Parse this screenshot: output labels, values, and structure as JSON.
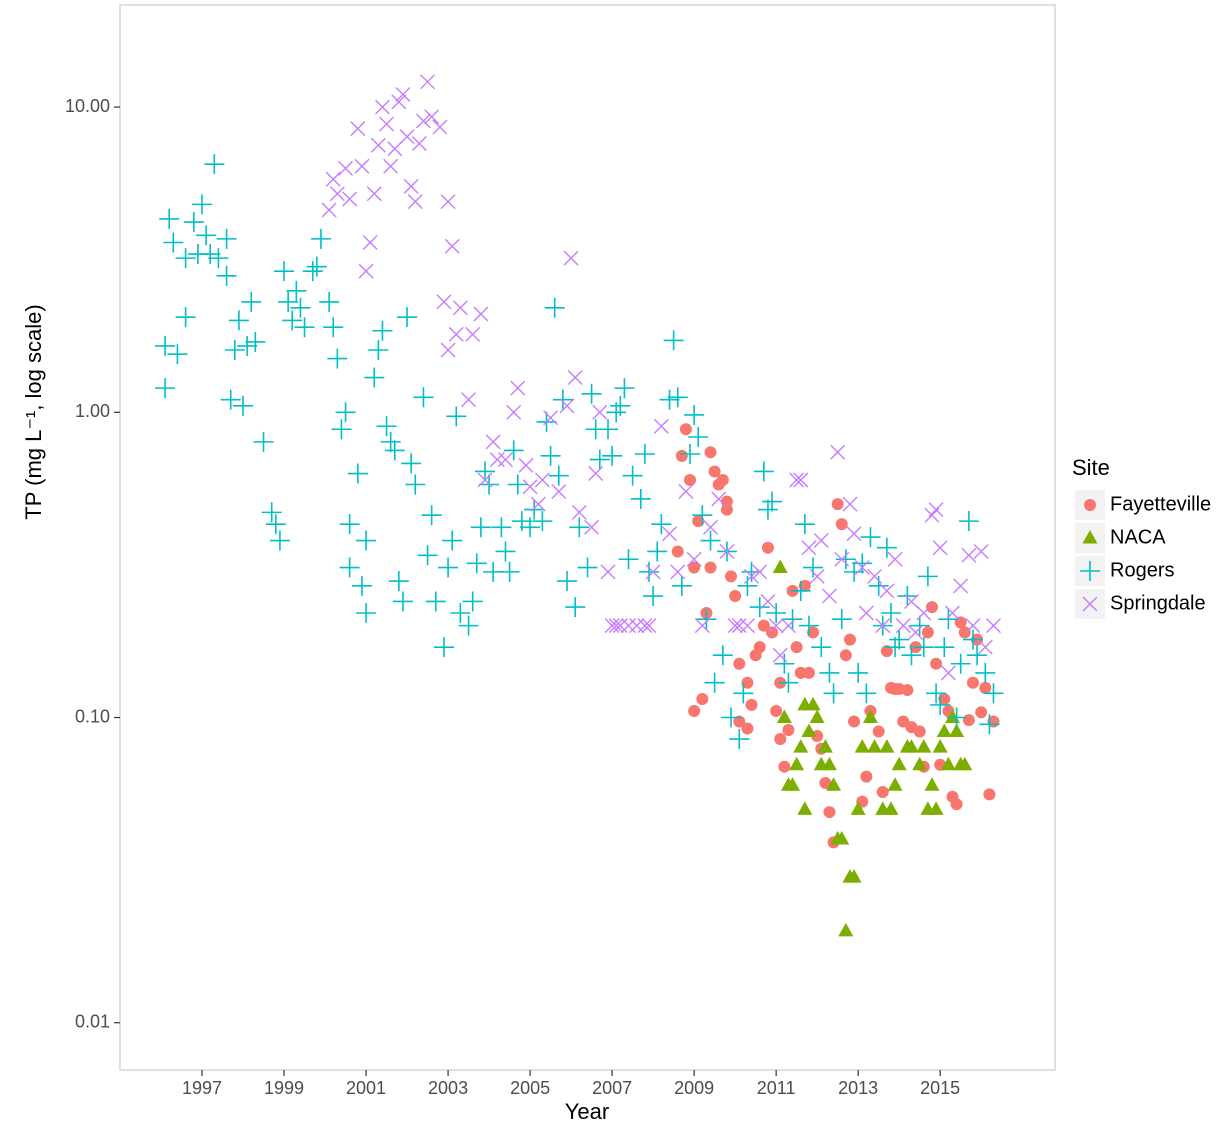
{
  "chart_data": {
    "type": "scatter",
    "x_label": "Year",
    "y_label": "TP (mg L⁻¹, log scale)",
    "legend_title": "Site",
    "legend_position": "right",
    "ylog": true,
    "xlim": [
      1995,
      2017.8
    ],
    "ylim": [
      0.007,
      21.6
    ],
    "xticks": [
      1997,
      1999,
      2001,
      2003,
      2005,
      2007,
      2009,
      2011,
      2013,
      2015
    ],
    "yticks": [
      {
        "value": 10,
        "label": "10.00"
      },
      {
        "value": 1,
        "label": "1.00"
      },
      {
        "value": 0.1,
        "label": "0.10"
      },
      0.01
    ],
    "series": [
      {
        "name": "Fayetteville",
        "color": "#F8766D",
        "marker": "circle",
        "x": [
          2008.6,
          2008.7,
          2008.8,
          2008.9,
          2009.0,
          2009.0,
          2009.1,
          2009.2,
          2009.3,
          2009.4,
          2009.4,
          2009.5,
          2009.6,
          2009.7,
          2009.8,
          2009.8,
          2009.9,
          2010.0,
          2010.1,
          2010.1,
          2010.3,
          2010.3,
          2010.4,
          2010.5,
          2010.6,
          2010.7,
          2010.8,
          2010.9,
          2011.0,
          2011.1,
          2011.1,
          2011.2,
          2011.3,
          2011.4,
          2011.5,
          2011.6,
          2011.7,
          2011.8,
          2011.9,
          2012.0,
          2012.1,
          2012.2,
          2012.3,
          2012.4,
          2012.5,
          2012.6,
          2012.7,
          2012.8,
          2012.9,
          2013.1,
          2013.2,
          2013.3,
          2013.5,
          2013.6,
          2013.7,
          2013.8,
          2013.9,
          2014.0,
          2014.1,
          2014.2,
          2014.3,
          2014.4,
          2014.5,
          2014.6,
          2014.7,
          2014.8,
          2014.9,
          2015.0,
          2015.1,
          2015.2,
          2015.3,
          2015.4,
          2015.5,
          2015.6,
          2015.7,
          2015.8,
          2015.9,
          2016.0,
          2016.1,
          2016.2,
          2016.3
        ],
        "values": [
          0.35,
          0.72,
          0.88,
          0.6,
          0.31,
          0.105,
          0.44,
          0.115,
          0.22,
          0.31,
          0.74,
          0.64,
          0.58,
          0.6,
          0.48,
          0.51,
          0.29,
          0.25,
          0.15,
          0.097,
          0.092,
          0.13,
          0.11,
          0.16,
          0.17,
          0.2,
          0.36,
          0.19,
          0.105,
          0.085,
          0.13,
          0.069,
          0.091,
          0.26,
          0.17,
          0.14,
          0.27,
          0.14,
          0.19,
          0.087,
          0.079,
          0.061,
          0.049,
          0.039,
          0.5,
          0.43,
          0.16,
          0.18,
          0.097,
          0.053,
          0.064,
          0.105,
          0.09,
          0.057,
          0.165,
          0.125,
          0.124,
          0.124,
          0.097,
          0.123,
          0.093,
          0.17,
          0.09,
          0.069,
          0.19,
          0.23,
          0.15,
          0.07,
          0.115,
          0.105,
          0.055,
          0.052,
          0.205,
          0.19,
          0.098,
          0.13,
          0.18,
          0.104,
          0.125,
          0.056,
          0.097
        ]
      },
      {
        "name": "NACA",
        "color": "#7CAE00",
        "marker": "triangle",
        "x": [
          2011.1,
          2011.2,
          2011.3,
          2011.4,
          2011.5,
          2011.6,
          2011.7,
          2011.7,
          2011.8,
          2011.9,
          2012.0,
          2012.1,
          2012.2,
          2012.3,
          2012.4,
          2012.5,
          2012.6,
          2012.7,
          2012.8,
          2012.9,
          2013.0,
          2013.1,
          2013.3,
          2013.4,
          2013.6,
          2013.7,
          2013.8,
          2013.9,
          2014.0,
          2014.2,
          2014.3,
          2014.5,
          2014.6,
          2014.7,
          2014.8,
          2014.9,
          2015.0,
          2015.1,
          2015.2,
          2015.3,
          2015.4,
          2015.5,
          2015.6
        ],
        "values": [
          0.31,
          0.1,
          0.06,
          0.06,
          0.07,
          0.08,
          0.11,
          0.05,
          0.09,
          0.11,
          0.1,
          0.07,
          0.08,
          0.07,
          0.06,
          0.04,
          0.04,
          0.02,
          0.03,
          0.03,
          0.05,
          0.08,
          0.1,
          0.08,
          0.05,
          0.08,
          0.05,
          0.06,
          0.07,
          0.08,
          0.08,
          0.07,
          0.08,
          0.05,
          0.06,
          0.05,
          0.08,
          0.09,
          0.07,
          0.1,
          0.09,
          0.07,
          0.07
        ]
      },
      {
        "name": "Rogers",
        "color": "#00BFC4",
        "marker": "plus",
        "x": [
          1996.1,
          1996.1,
          1996.2,
          1996.3,
          1996.4,
          1996.6,
          1996.6,
          1996.8,
          1996.9,
          1997.0,
          1997.1,
          1997.2,
          1997.3,
          1997.4,
          1997.6,
          1997.6,
          1997.7,
          1997.8,
          1997.9,
          1998.0,
          1998.1,
          1998.2,
          1998.3,
          1998.5,
          1998.7,
          1998.8,
          1998.9,
          1999.0,
          1999.1,
          1999.2,
          1999.3,
          1999.4,
          1999.5,
          1999.7,
          1999.8,
          1999.9,
          2000.1,
          2000.2,
          2000.3,
          2000.4,
          2000.5,
          2000.6,
          2000.6,
          2000.8,
          2000.9,
          2001.0,
          2001.0,
          2001.2,
          2001.3,
          2001.4,
          2001.5,
          2001.6,
          2001.7,
          2001.8,
          2001.9,
          2002.0,
          2002.1,
          2002.2,
          2002.4,
          2002.5,
          2002.6,
          2002.7,
          2002.9,
          2003.0,
          2003.1,
          2003.2,
          2003.3,
          2003.5,
          2003.6,
          2003.7,
          2003.8,
          2003.9,
          2004.0,
          2004.1,
          2004.3,
          2004.4,
          2004.5,
          2004.6,
          2004.7,
          2004.8,
          2005.0,
          2005.1,
          2005.3,
          2005.4,
          2005.5,
          2005.6,
          2005.7,
          2005.8,
          2005.9,
          2006.1,
          2006.2,
          2006.4,
          2006.5,
          2006.6,
          2006.7,
          2006.9,
          2007.0,
          2007.1,
          2007.2,
          2007.3,
          2007.4,
          2007.5,
          2007.7,
          2007.8,
          2007.9,
          2008.0,
          2008.1,
          2008.2,
          2008.4,
          2008.5,
          2008.6,
          2008.7,
          2008.9,
          2009.0,
          2009.1,
          2009.2,
          2009.3,
          2009.4,
          2009.5,
          2009.7,
          2009.8,
          2009.9,
          2010.1,
          2010.2,
          2010.3,
          2010.4,
          2010.6,
          2010.7,
          2010.8,
          2010.9,
          2011.0,
          2011.2,
          2011.3,
          2011.4,
          2011.6,
          2011.7,
          2011.8,
          2011.9,
          2012.1,
          2012.3,
          2012.4,
          2012.6,
          2012.7,
          2012.9,
          2013.0,
          2013.1,
          2013.2,
          2013.3,
          2013.5,
          2013.6,
          2013.7,
          2013.8,
          2013.9,
          2014.0,
          2014.2,
          2014.3,
          2014.5,
          2014.6,
          2014.7,
          2014.9,
          2015.0,
          2015.1,
          2015.2,
          2015.4,
          2015.5,
          2015.7,
          2015.8,
          2015.9,
          2016.1,
          2016.2,
          2016.3
        ],
        "values": [
          1.2,
          1.65,
          4.3,
          3.6,
          1.55,
          2.05,
          3.2,
          4.2,
          3.3,
          4.8,
          3.8,
          3.3,
          6.5,
          3.2,
          3.7,
          2.8,
          1.1,
          1.6,
          2.0,
          1.05,
          1.65,
          2.3,
          1.7,
          0.8,
          0.47,
          0.43,
          0.38,
          2.9,
          2.3,
          2.0,
          2.5,
          2.2,
          1.9,
          2.9,
          3.0,
          3.7,
          2.3,
          1.9,
          1.5,
          0.88,
          1.0,
          0.43,
          0.31,
          0.63,
          0.27,
          0.38,
          0.22,
          1.3,
          1.6,
          1.85,
          0.9,
          0.8,
          0.75,
          0.28,
          0.24,
          2.05,
          0.68,
          0.58,
          1.12,
          0.34,
          0.46,
          0.24,
          0.17,
          0.31,
          0.38,
          0.97,
          0.22,
          0.2,
          0.24,
          0.32,
          0.42,
          0.64,
          0.58,
          0.3,
          0.42,
          0.35,
          0.3,
          0.75,
          0.58,
          0.44,
          0.42,
          0.48,
          0.44,
          0.93,
          0.72,
          2.2,
          0.62,
          1.1,
          0.28,
          0.23,
          0.42,
          0.31,
          1.15,
          0.88,
          0.7,
          0.88,
          0.72,
          1.0,
          1.05,
          1.2,
          0.33,
          0.62,
          0.52,
          0.73,
          0.3,
          0.25,
          0.35,
          0.43,
          1.1,
          1.72,
          1.12,
          0.27,
          0.73,
          0.98,
          0.83,
          0.46,
          0.21,
          0.38,
          0.13,
          0.16,
          0.35,
          0.1,
          0.085,
          0.12,
          0.27,
          0.3,
          0.23,
          0.64,
          0.48,
          0.51,
          0.22,
          0.15,
          0.13,
          0.21,
          0.26,
          0.43,
          0.2,
          0.31,
          0.17,
          0.14,
          0.12,
          0.21,
          0.33,
          0.3,
          0.14,
          0.32,
          0.12,
          0.39,
          0.27,
          0.2,
          0.36,
          0.22,
          0.17,
          0.18,
          0.25,
          0.16,
          0.2,
          0.17,
          0.29,
          0.12,
          0.11,
          0.17,
          0.21,
          0.1,
          0.15,
          0.44,
          0.18,
          0.16,
          0.14,
          0.095,
          0.12
        ]
      },
      {
        "name": "Springdale",
        "color": "#C77CFF",
        "marker": "cross",
        "x": [
          2000.1,
          2000.2,
          2000.3,
          2000.5,
          2000.6,
          2000.8,
          2000.9,
          2001.0,
          2001.1,
          2001.2,
          2001.3,
          2001.4,
          2001.5,
          2001.6,
          2001.7,
          2001.8,
          2001.9,
          2002.0,
          2002.1,
          2002.2,
          2002.3,
          2002.4,
          2002.5,
          2002.6,
          2002.8,
          2002.9,
          2003.0,
          2003.0,
          2003.1,
          2003.2,
          2003.3,
          2003.5,
          2003.6,
          2003.8,
          2003.9,
          2004.1,
          2004.2,
          2004.4,
          2004.6,
          2004.7,
          2004.9,
          2005.0,
          2005.2,
          2005.3,
          2005.5,
          2005.7,
          2005.9,
          2006.0,
          2006.1,
          2006.2,
          2006.5,
          2006.6,
          2006.7,
          2006.9,
          2007.0,
          2007.1,
          2007.2,
          2007.4,
          2007.6,
          2007.8,
          2007.9,
          2008.0,
          2008.2,
          2008.4,
          2008.6,
          2008.8,
          2009.0,
          2009.2,
          2009.4,
          2009.6,
          2009.8,
          2010.0,
          2010.1,
          2010.3,
          2010.4,
          2010.6,
          2010.8,
          2011.0,
          2011.1,
          2011.3,
          2011.5,
          2011.6,
          2011.8,
          2012.0,
          2012.1,
          2012.3,
          2012.5,
          2012.6,
          2012.8,
          2012.9,
          2013.1,
          2013.2,
          2013.4,
          2013.6,
          2013.7,
          2013.9,
          2014.1,
          2014.3,
          2014.4,
          2014.6,
          2014.8,
          2014.9,
          2015.0,
          2015.2,
          2015.3,
          2015.5,
          2015.7,
          2015.8,
          2016.0,
          2016.1,
          2016.3
        ],
        "values": [
          4.6,
          5.8,
          5.2,
          6.3,
          5.0,
          8.5,
          6.4,
          2.9,
          3.6,
          5.2,
          7.5,
          10.0,
          8.8,
          6.4,
          7.3,
          10.4,
          11.0,
          8.0,
          5.5,
          4.9,
          7.6,
          9.0,
          12.1,
          9.3,
          8.6,
          2.3,
          4.9,
          1.6,
          3.5,
          1.8,
          2.2,
          1.1,
          1.8,
          2.1,
          0.6,
          0.8,
          0.7,
          0.7,
          1.0,
          1.2,
          0.67,
          0.57,
          0.5,
          0.6,
          0.96,
          0.55,
          1.05,
          3.2,
          1.3,
          0.47,
          0.42,
          0.63,
          1.0,
          0.3,
          0.2,
          0.2,
          0.2,
          0.2,
          0.2,
          0.2,
          0.2,
          0.3,
          0.9,
          0.4,
          0.3,
          0.55,
          0.33,
          0.2,
          0.42,
          0.52,
          0.35,
          0.2,
          0.2,
          0.2,
          0.29,
          0.3,
          0.24,
          0.2,
          0.16,
          0.2,
          0.6,
          0.6,
          0.36,
          0.29,
          0.38,
          0.25,
          0.74,
          0.33,
          0.5,
          0.4,
          0.31,
          0.22,
          0.29,
          0.2,
          0.26,
          0.33,
          0.2,
          0.24,
          0.19,
          0.22,
          0.46,
          0.48,
          0.36,
          0.14,
          0.22,
          0.27,
          0.34,
          0.2,
          0.35,
          0.17,
          0.2
        ]
      }
    ]
  }
}
